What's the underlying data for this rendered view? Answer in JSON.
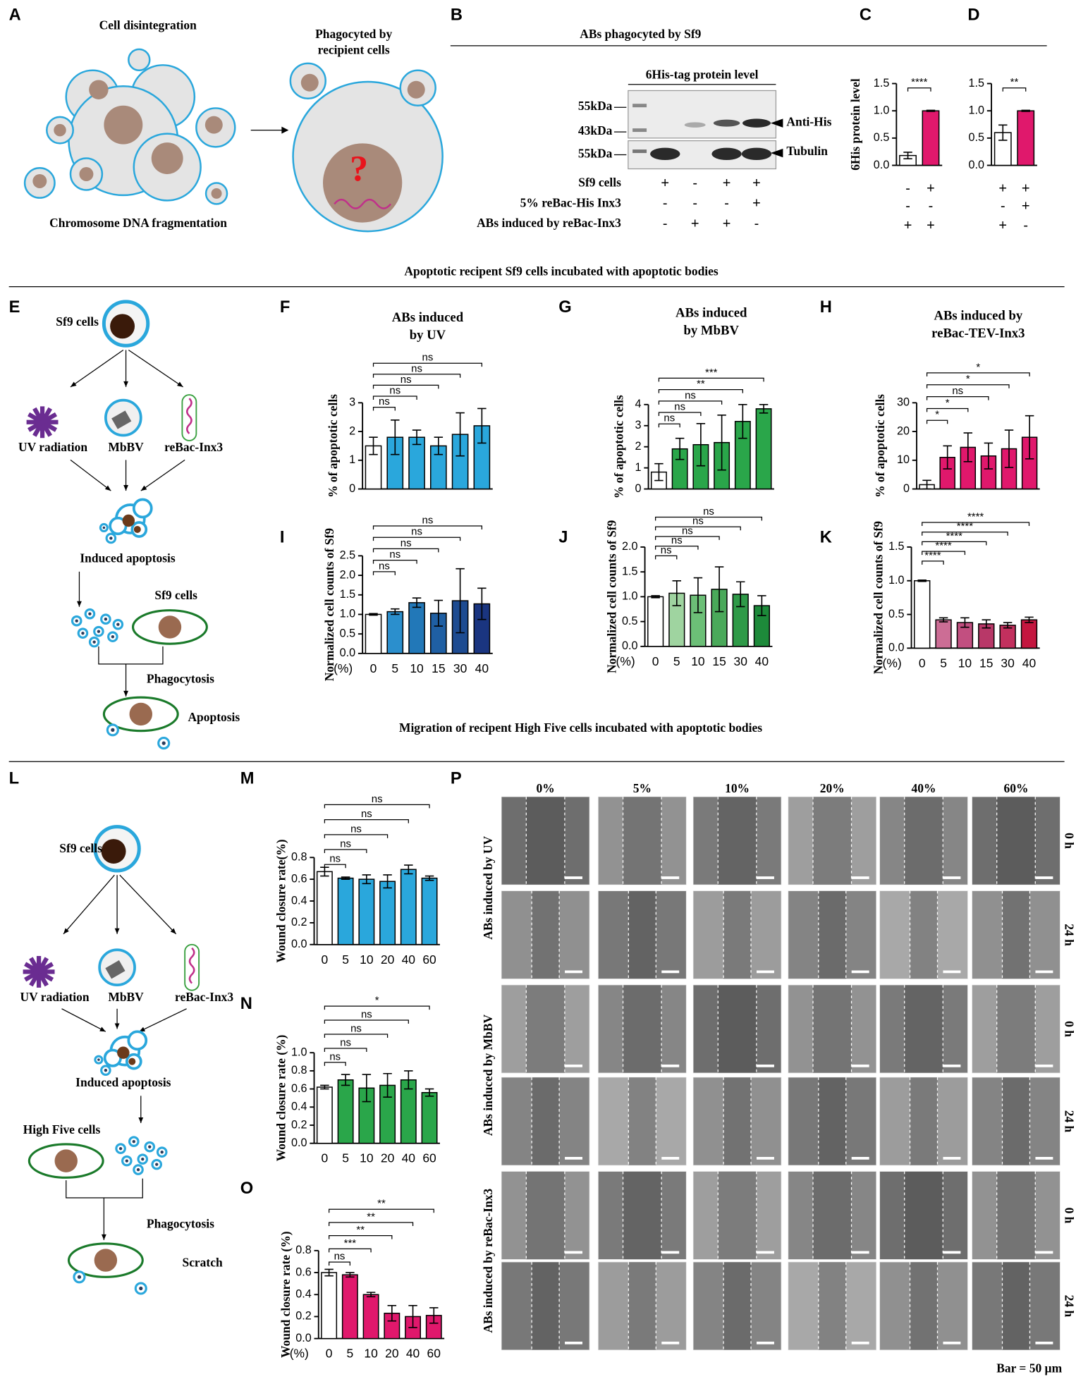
{
  "figure": {
    "panels": [
      "A",
      "B",
      "C",
      "D",
      "E",
      "F",
      "G",
      "H",
      "I",
      "J",
      "K",
      "L",
      "M",
      "N",
      "O",
      "P"
    ],
    "headings": [
      "ABs phagocyted by Sf9",
      "Apoptotic recipent Sf9 cells incubated with apoptotic bodies",
      "Migration of  recipent High Five cells incubated with apoptotic bodies"
    ]
  },
  "panel_a": {
    "top_left": "Cell disintegration",
    "top_right": [
      "Phagocyted by",
      "recipient cells"
    ],
    "bottom": "Chromosome DNA fragmentation",
    "question": "?"
  },
  "panel_b": {
    "blot_title": "6His-tag protein level",
    "markers": [
      "55kDa",
      "43kDa",
      "55kDa"
    ],
    "bands": [
      "Anti-His",
      "Tubulin"
    ],
    "rows": [
      "Sf9 cells",
      "5% reBac-His Inx3",
      "ABs induced by reBac-Inx3"
    ],
    "signs": [
      [
        "+",
        "-",
        "+",
        "+"
      ],
      [
        "-",
        "-",
        "-",
        "+"
      ],
      [
        "-",
        "+",
        "+",
        "-"
      ]
    ]
  },
  "panel_e": {
    "labels": [
      "Sf9 cells",
      "UV radiation",
      "MbBV",
      "reBac-Inx3",
      "Induced apoptosis",
      "Sf9 cells",
      "Phagocytosis",
      "Apoptosis"
    ]
  },
  "panel_l": {
    "labels": [
      "Sf9 cells",
      "UV radiation",
      "MbBV",
      "reBac-Inx3",
      "Induced apoptosis",
      "High Five cells",
      "Phagocytosis",
      "Scratch"
    ]
  },
  "panel_p": {
    "columns": [
      "0%",
      "5%",
      "10%",
      "20%",
      "40%",
      "60%"
    ],
    "times": [
      "0 h",
      "24 h",
      "0 h",
      "24 h",
      "0 h",
      "24 h"
    ],
    "groups": [
      "ABs induced by UV",
      "ABs induced by MbBV",
      "ABs induced by reBac-Inx3"
    ],
    "scale": "Bar = 50 µm"
  },
  "chart_data": [
    {
      "type": "bar",
      "ylabel": "6His protein level",
      "values": [
        0.18,
        1.0
      ],
      "errors": [
        0.06,
        0.01
      ],
      "colors": [
        "#ffffff",
        "#e0186c"
      ],
      "ylim": [
        0,
        1.5
      ],
      "yticks": [
        {
          "value": 0,
          "label": "0.0"
        },
        0.5,
        {
          "value": 1,
          "label": "1.0"
        },
        1.5
      ],
      "significance": [
        "****"
      ],
      "sign_rows": [
        [
          "-",
          "+"
        ],
        [
          "-",
          "-"
        ],
        [
          "+",
          "+"
        ]
      ]
    },
    {
      "type": "bar",
      "values": [
        0.6,
        1.0
      ],
      "errors": [
        0.14,
        0.01
      ],
      "colors": [
        "#ffffff",
        "#e0186c"
      ],
      "ylim": [
        0,
        1.5
      ],
      "yticks": [
        {
          "value": 0,
          "label": "0.0"
        },
        0.5,
        {
          "value": 1,
          "label": "1.0"
        },
        1.5
      ],
      "significance": [
        "**"
      ],
      "sign_rows": [
        [
          "+",
          "+"
        ],
        [
          "-",
          "+"
        ],
        [
          "+",
          "-"
        ]
      ]
    },
    {
      "type": "bar",
      "title": [
        "ABs induced",
        "by UV"
      ],
      "ylabel": "% of apoptotic cells",
      "values": [
        1.5,
        1.8,
        1.8,
        1.5,
        1.9,
        2.2
      ],
      "errors": [
        0.3,
        0.6,
        0.25,
        0.3,
        0.75,
        0.6
      ],
      "colors": [
        "#ffffff",
        "#2aa7dc",
        "#2aa7dc",
        "#2aa7dc",
        "#2aa7dc",
        "#2aa7dc"
      ],
      "ylim": [
        0,
        3
      ],
      "yticks": [
        0,
        1,
        2,
        3
      ],
      "significance": [
        "ns",
        "ns",
        "ns",
        "ns",
        "ns"
      ]
    },
    {
      "type": "bar",
      "title": [
        "ABs induced",
        "by MbBV"
      ],
      "ylabel": "% of apoptotic cells",
      "values": [
        0.8,
        1.9,
        2.1,
        2.2,
        3.2,
        3.8
      ],
      "errors": [
        0.4,
        0.5,
        1.0,
        1.3,
        0.8,
        0.2
      ],
      "colors": [
        "#ffffff",
        "#2aa64a",
        "#2aa64a",
        "#2aa64a",
        "#2aa64a",
        "#2aa64a"
      ],
      "ylim": [
        0,
        4
      ],
      "yticks": [
        0,
        1,
        2,
        3,
        4
      ],
      "significance": [
        "ns",
        "ns",
        "ns",
        "**",
        "***"
      ]
    },
    {
      "type": "bar",
      "title": [
        "ABs induced by",
        "reBac-TEV-Inx3"
      ],
      "ylabel": "% of apoptotic cells",
      "values": [
        1.5,
        11,
        14.5,
        11.5,
        14,
        18
      ],
      "errors": [
        1.5,
        4,
        5,
        4.5,
        6.5,
        7.5
      ],
      "colors": [
        "#ffffff",
        "#e0186c",
        "#e0186c",
        "#e0186c",
        "#e0186c",
        "#e0186c"
      ],
      "ylim": [
        0,
        30
      ],
      "yticks": [
        0,
        10,
        20,
        30
      ],
      "significance": [
        "*",
        "*",
        "ns",
        "*",
        "*"
      ]
    },
    {
      "type": "bar",
      "ylabel": "Normalized cell counts of Sf9",
      "xunit": "(%)",
      "categories": [
        "0",
        "5",
        "10",
        "15",
        "30",
        "40"
      ],
      "values": [
        1.0,
        1.07,
        1.3,
        1.03,
        1.35,
        1.27
      ],
      "errors": [
        0.02,
        0.07,
        0.12,
        0.33,
        0.82,
        0.4
      ],
      "colors": [
        "#ffffff",
        "#2b8fcd",
        "#2278b8",
        "#1f5fa3",
        "#1d4b91",
        "#1a3580"
      ],
      "ylim": [
        0,
        2.5
      ],
      "yticks": [
        {
          "value": 0,
          "label": "0.0"
        },
        0.5,
        {
          "value": 1,
          "label": "1.0"
        },
        1.5,
        {
          "value": 2,
          "label": "2.0"
        },
        2.5
      ],
      "significance": [
        "ns",
        "ns",
        "ns",
        "ns",
        "ns"
      ]
    },
    {
      "type": "bar",
      "ylabel": "Normalized cell counts of Sf9",
      "xunit": "(%)",
      "categories": [
        "0",
        "5",
        "10",
        "15",
        "30",
        "40"
      ],
      "values": [
        1.0,
        1.07,
        1.03,
        1.15,
        1.05,
        0.82
      ],
      "errors": [
        0.02,
        0.25,
        0.35,
        0.45,
        0.25,
        0.2
      ],
      "colors": [
        "#ffffff",
        "#9fd4a0",
        "#6cbf77",
        "#4aa95a",
        "#2f9a48",
        "#1d8a3a"
      ],
      "ylim": [
        0,
        2
      ],
      "yticks": [
        {
          "value": 0,
          "label": "0.0"
        },
        0.5,
        {
          "value": 1,
          "label": "1.0"
        },
        1.5,
        {
          "value": 2,
          "label": "2.0"
        }
      ],
      "significance": [
        "ns",
        "ns",
        "ns",
        "ns",
        "ns"
      ]
    },
    {
      "type": "bar",
      "ylabel": "Normalized cell counts of Sf9",
      "xunit": "(%)",
      "categories": [
        "0",
        "5",
        "10",
        "15",
        "30",
        "40"
      ],
      "values": [
        1.0,
        0.42,
        0.38,
        0.36,
        0.34,
        0.42
      ],
      "errors": [
        0.01,
        0.03,
        0.07,
        0.06,
        0.04,
        0.04
      ],
      "colors": [
        "#ffffff",
        "#cc6d95",
        "#c24f80",
        "#b83868",
        "#c2305e",
        "#c4163f"
      ],
      "ylim": [
        0,
        1.5
      ],
      "yticks": [
        {
          "value": 0,
          "label": "0.0"
        },
        0.5,
        {
          "value": 1,
          "label": "1.0"
        },
        1.5
      ],
      "significance": [
        "****",
        "****",
        "****",
        "****",
        "****"
      ]
    },
    {
      "type": "bar",
      "ylabel": "Wound closure rate(%)",
      "categories": [
        "0",
        "5",
        "10",
        "20",
        "40",
        "60"
      ],
      "values": [
        0.67,
        0.61,
        0.6,
        0.58,
        0.69,
        0.61
      ],
      "errors": [
        0.04,
        0.01,
        0.04,
        0.06,
        0.04,
        0.02
      ],
      "colors": [
        "#ffffff",
        "#2aa7dc",
        "#2aa7dc",
        "#2aa7dc",
        "#2aa7dc",
        "#2aa7dc"
      ],
      "ylim": [
        0,
        0.8
      ],
      "yticks": [
        {
          "value": 0,
          "label": "0.0"
        },
        0.2,
        0.4,
        0.6,
        0.8
      ],
      "significance": [
        "ns",
        "ns",
        "ns",
        "ns",
        "ns"
      ]
    },
    {
      "type": "bar",
      "ylabel": "Wound closure rate (%)",
      "categories": [
        "0",
        "5",
        "10",
        "20",
        "40",
        "60"
      ],
      "values": [
        0.62,
        0.7,
        0.61,
        0.64,
        0.7,
        0.56
      ],
      "errors": [
        0.02,
        0.06,
        0.15,
        0.13,
        0.1,
        0.04
      ],
      "colors": [
        "#ffffff",
        "#2aa64a",
        "#2aa64a",
        "#2aa64a",
        "#2aa64a",
        "#2aa64a"
      ],
      "ylim": [
        0,
        1
      ],
      "yticks": [
        {
          "value": 0,
          "label": "0.0"
        },
        0.2,
        0.4,
        0.6,
        0.8,
        {
          "value": 1,
          "label": "1.0"
        }
      ],
      "significance": [
        "ns",
        "ns",
        "ns",
        "ns",
        "*"
      ]
    },
    {
      "type": "bar",
      "ylabel": "Wound closure rate (%)",
      "xunit": "(%)",
      "categories": [
        "0",
        "5",
        "10",
        "20",
        "40",
        "60"
      ],
      "values": [
        0.6,
        0.58,
        0.4,
        0.23,
        0.2,
        0.21
      ],
      "errors": [
        0.03,
        0.02,
        0.02,
        0.07,
        0.1,
        0.07
      ],
      "colors": [
        "#ffffff",
        "#e0186c",
        "#e0186c",
        "#e0186c",
        "#e0186c",
        "#e0186c"
      ],
      "ylim": [
        0,
        0.8
      ],
      "yticks": [
        {
          "value": 0,
          "label": "0.0"
        },
        0.2,
        0.4,
        0.6,
        0.8
      ],
      "significance": [
        "ns",
        "***",
        "**",
        "**",
        "**"
      ]
    }
  ]
}
